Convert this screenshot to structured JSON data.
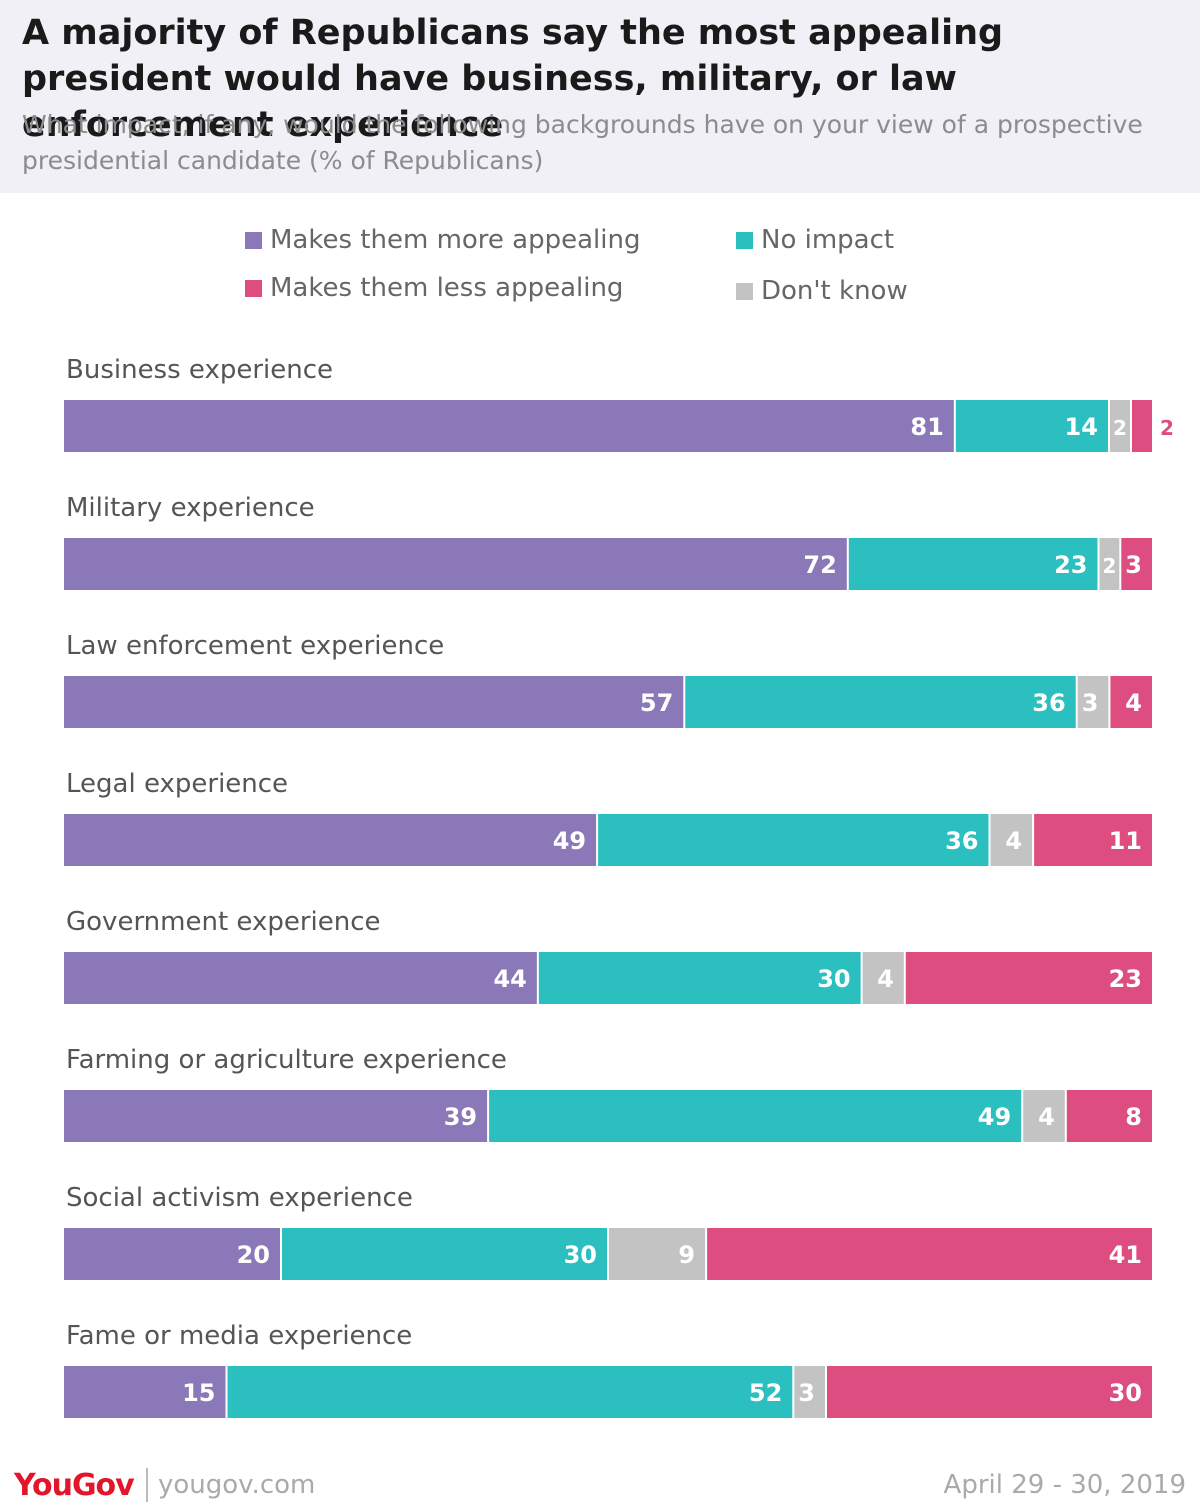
{
  "header": {
    "title": "A majority of Republicans say the most appealing president would have business, military, or law enforcement experience",
    "subtitle": "What impact, if any, would the following backgrounds have on your view of a prospective presidential candidate (% of Republicans)"
  },
  "legend": {
    "items": [
      {
        "label": "Makes them more appealing",
        "color": "#8a78b8"
      },
      {
        "label": "No impact",
        "color": "#2bbfbf"
      },
      {
        "label": "Makes them less appealing",
        "color": "#de4d80"
      },
      {
        "label": "Don't know",
        "color": "#c3c3c3"
      }
    ]
  },
  "chart_data": {
    "type": "bar",
    "orientation": "horizontal",
    "stacked": true,
    "categories": [
      "Business experience",
      "Military experience",
      "Law enforcement experience",
      "Legal experience",
      "Government experience",
      "Farming or agriculture experience",
      "Social activism experience",
      "Fame or media experience"
    ],
    "series": [
      {
        "name": "Makes them more appealing",
        "color": "#8a78b8",
        "values": [
          81,
          72,
          57,
          49,
          44,
          39,
          20,
          15
        ]
      },
      {
        "name": "No impact",
        "color": "#2bbfbf",
        "values": [
          14,
          23,
          36,
          36,
          30,
          49,
          30,
          52
        ]
      },
      {
        "name": "Don't know",
        "color": "#c3c3c3",
        "values": [
          2,
          2,
          3,
          4,
          4,
          4,
          9,
          3
        ]
      },
      {
        "name": "Makes them less appealing",
        "color": "#de4d80",
        "values": [
          2,
          3,
          4,
          11,
          23,
          8,
          41,
          30
        ]
      }
    ],
    "legend_position": "top",
    "grid": false
  },
  "footer": {
    "brand": "YouGov",
    "site": "yougov.com",
    "date": "April 29 - 30, 2019"
  }
}
